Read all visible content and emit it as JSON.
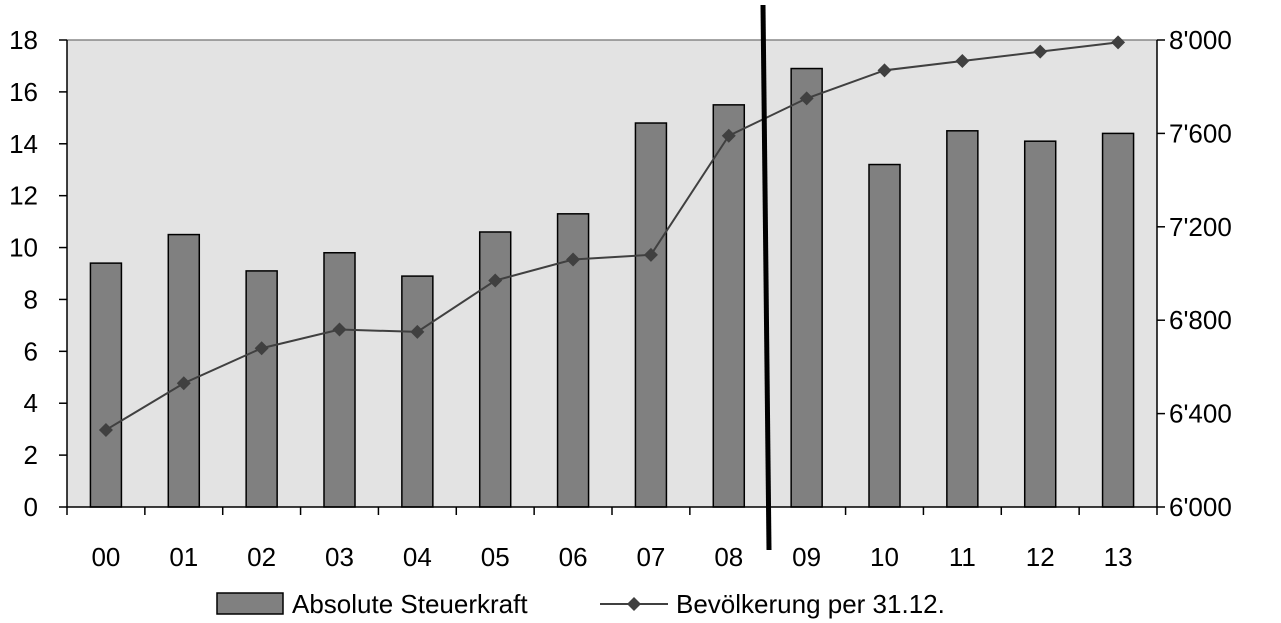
{
  "chart_data": {
    "type": "bar",
    "title": "",
    "categories": [
      "00",
      "01",
      "02",
      "03",
      "04",
      "05",
      "06",
      "07",
      "08",
      "09",
      "10",
      "11",
      "12",
      "13"
    ],
    "series": [
      {
        "name": "Absolute Steuerkraft",
        "type": "bar",
        "axis": "left",
        "color": "#808080",
        "values": [
          9.4,
          10.5,
          9.1,
          9.8,
          8.9,
          10.6,
          11.3,
          14.8,
          15.5,
          16.9,
          13.2,
          14.5,
          14.1,
          14.4
        ]
      },
      {
        "name": "Bevölkerung per 31.12.",
        "type": "line",
        "axis": "right",
        "color": "#404040",
        "marker": "diamond",
        "values": [
          6330,
          6530,
          6680,
          6760,
          6750,
          6970,
          7060,
          7080,
          7590,
          7750,
          7870,
          7910,
          7950,
          7990
        ]
      }
    ],
    "y_left": {
      "min": 0,
      "max": 18,
      "ticks": [
        "0",
        "2",
        "4",
        "6",
        "8",
        "10",
        "12",
        "14",
        "16",
        "18"
      ]
    },
    "y_right": {
      "min": 6000,
      "max": 8000,
      "ticks": [
        "6'000",
        "6'400",
        "6'800",
        "7'200",
        "7'600",
        "8'000"
      ]
    },
    "divider_after_category": "08",
    "plot_background": "#e3e3e3",
    "grid": false,
    "legend_position": "bottom"
  }
}
